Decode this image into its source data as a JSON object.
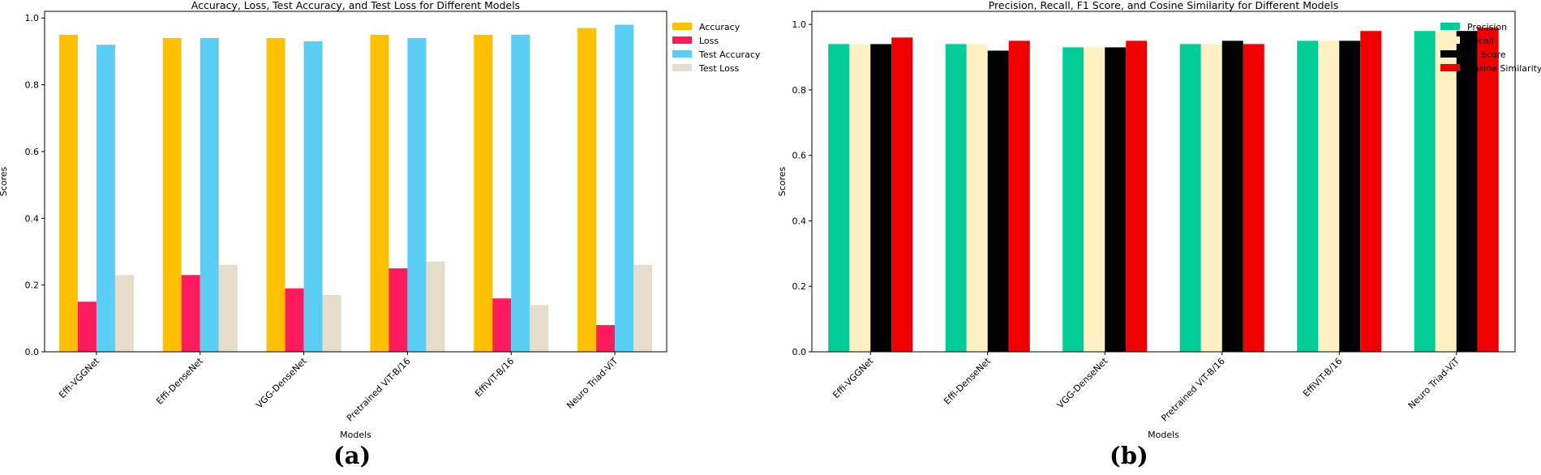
{
  "panel_labels": [
    "(a)",
    "(b)"
  ],
  "chart_data": [
    {
      "type": "bar",
      "title": "Accuracy, Loss, Test Accuracy, and Test Loss for Different Models",
      "xlabel": "Models",
      "ylabel": "Scores",
      "ylim": [
        0,
        1.02
      ],
      "yticks": [
        0.0,
        0.2,
        0.4,
        0.6,
        0.8,
        1.0
      ],
      "ytick_labels": [
        "0.0",
        "0.2",
        "0.4",
        "0.6",
        "0.8",
        "1.0"
      ],
      "grid": false,
      "legend": "top-right outside",
      "categories": [
        "Effi-VGGNet",
        "Effi-DenseNet",
        "VGG-DenseNet",
        "Pretrained ViT-B/16",
        "EffiViT-B/16",
        "Neuro Triad-ViT"
      ],
      "series": [
        {
          "name": "Accuracy",
          "color": "#FFC000",
          "values": [
            0.95,
            0.94,
            0.94,
            0.95,
            0.95,
            0.97
          ]
        },
        {
          "name": "Loss",
          "color": "#FF1A5E",
          "values": [
            0.15,
            0.23,
            0.19,
            0.25,
            0.16,
            0.08
          ]
        },
        {
          "name": "Test Accuracy",
          "color": "#5BCEF5",
          "values": [
            0.92,
            0.94,
            0.93,
            0.94,
            0.95,
            0.98
          ]
        },
        {
          "name": "Test Loss",
          "color": "#E6DCCA",
          "values": [
            0.23,
            0.26,
            0.17,
            0.27,
            0.14,
            0.26
          ]
        }
      ]
    },
    {
      "type": "bar",
      "title": "Precision, Recall, F1 Score, and Cosine Similarity for Different Models",
      "xlabel": "Models",
      "ylabel": "Scores",
      "ylim": [
        0,
        1.04
      ],
      "yticks": [
        0.0,
        0.2,
        0.4,
        0.6,
        0.8,
        1.0
      ],
      "ytick_labels": [
        "0.0",
        "0.2",
        "0.4",
        "0.6",
        "0.8",
        "1.0"
      ],
      "grid": false,
      "legend": "top-right outside",
      "categories": [
        "Effi-VGGNet",
        "Effi-DenseNet",
        "VGG-DenseNet",
        "Pretrained ViT-B/16",
        "EffiViT-B/16",
        "Neuro Triad-ViT"
      ],
      "series": [
        {
          "name": "Precision",
          "color": "#00CC96",
          "values": [
            0.94,
            0.94,
            0.93,
            0.94,
            0.95,
            0.98
          ]
        },
        {
          "name": "Recall",
          "color": "#FFF2C2",
          "values": [
            0.94,
            0.94,
            0.93,
            0.94,
            0.95,
            0.98
          ]
        },
        {
          "name": "F1 Score",
          "color": "#000000",
          "values": [
            0.94,
            0.92,
            0.93,
            0.95,
            0.95,
            0.98
          ]
        },
        {
          "name": "Cosine Similarity",
          "color": "#F00000",
          "values": [
            0.96,
            0.95,
            0.95,
            0.94,
            0.98,
            0.99
          ]
        }
      ]
    }
  ]
}
